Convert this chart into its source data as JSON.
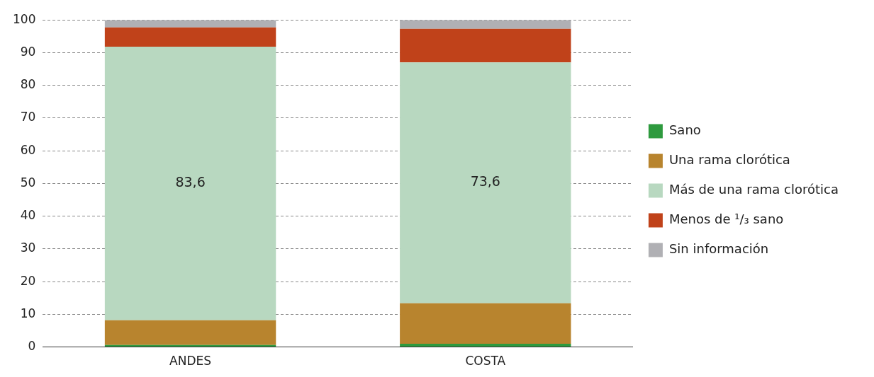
{
  "chart_data": {
    "type": "bar",
    "stacked": true,
    "categories": [
      "ANDES",
      "COSTA"
    ],
    "series": [
      {
        "name": "Sano",
        "color": "#2e9a3e",
        "values": [
          0.6,
          1.0
        ]
      },
      {
        "name": "Una rama clorótica",
        "color": "#b8842e",
        "values": [
          7.6,
          12.4
        ]
      },
      {
        "name": "Más de una rama clorótica",
        "color": "#b8d8c0",
        "values": [
          83.6,
          73.6
        ],
        "value_labels": [
          "83,6",
          "73,6"
        ]
      },
      {
        "name": "Menos de ¹/₃ sano",
        "color": "#c0421a",
        "values": [
          5.9,
          10.3
        ]
      },
      {
        "name": "Sin información",
        "color": "#b0b0b4",
        "values": [
          2.3,
          2.7
        ]
      }
    ],
    "ylim": [
      0,
      100
    ],
    "yticks": [
      0,
      10,
      20,
      30,
      40,
      50,
      60,
      70,
      80,
      90,
      100
    ],
    "grid": "y",
    "legend": "right"
  }
}
